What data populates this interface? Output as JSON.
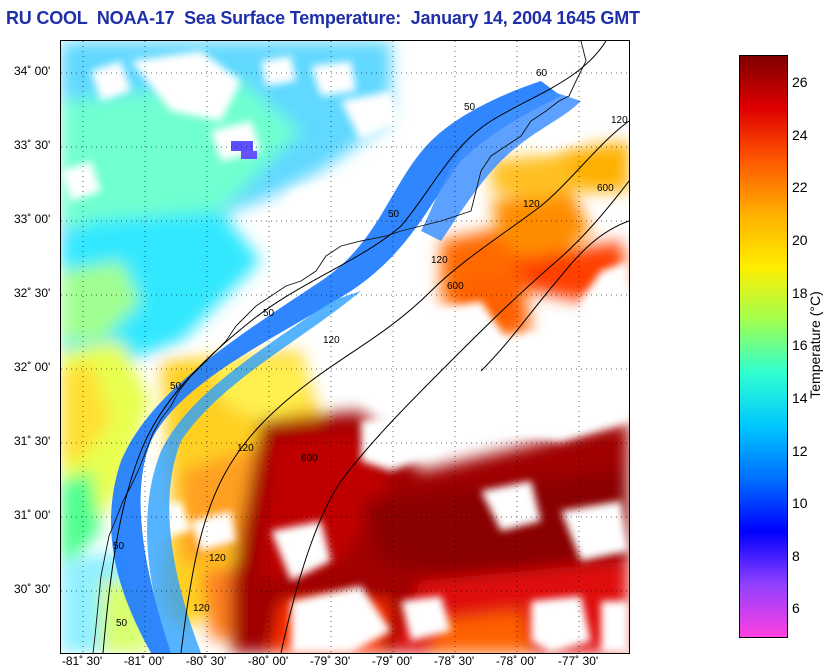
{
  "title": "RU COOL  NOAA-17  Sea Surface Temperature:  January 14, 2004 1645 GMT",
  "map": {
    "lat_labels": [
      "34˚ 00'",
      "33˚ 30'",
      "33˚ 00'",
      "32˚ 30'",
      "32˚ 00'",
      "31˚ 30'",
      "31˚ 00'",
      "30˚ 30'"
    ],
    "lon_labels": [
      "-81˚ 30'",
      "-81˚ 00'",
      "-80˚ 30'",
      "-80˚ 00'",
      "-79˚ 30'",
      "-79˚ 00'",
      "-78˚ 30'",
      "-78˚ 00'",
      "-77˚ 30'"
    ],
    "isobath_labels": [
      "50",
      "50",
      "50",
      "50",
      "50",
      "120",
      "120",
      "120",
      "120",
      "120",
      "600",
      "600",
      "600",
      "120",
      "120",
      "50",
      "60"
    ],
    "land_color": "#ffffff",
    "cloud_color": "#ffffff",
    "isobath_color": "#000000"
  },
  "colorbar": {
    "label": "Temperature (°C)",
    "ticks": [
      "26",
      "24",
      "22",
      "20",
      "18",
      "16",
      "14",
      "12",
      "10",
      "8",
      "6"
    ],
    "colors": [
      "#7f0000",
      "#e00000",
      "#ff5a00",
      "#ffb000",
      "#ffee00",
      "#a0ff50",
      "#30ffd0",
      "#00c8ff",
      "#0070ff",
      "#0000ff",
      "#9040ff",
      "#ff40e0"
    ]
  }
}
